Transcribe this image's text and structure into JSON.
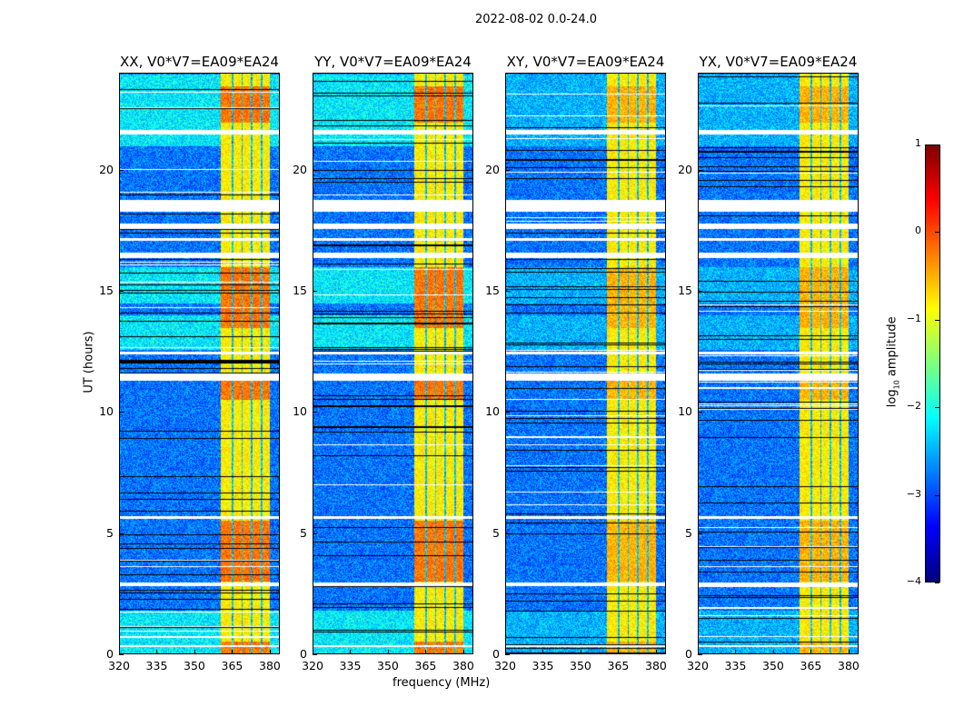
{
  "suptitle": "2022-08-02 0.0-24.0",
  "chart_data": {
    "type": "heatmap",
    "title": "2022-08-02 0.0-24.0",
    "xlabel": "frequency (MHz)",
    "ylabel": "UT (hours)",
    "xlim": [
      320,
      384
    ],
    "ylim": [
      0,
      24
    ],
    "xticks": [
      "320",
      "335",
      "350",
      "365",
      "380"
    ],
    "xtick_values": [
      320,
      335,
      350,
      365,
      380
    ],
    "yticks": [
      "0",
      "5",
      "10",
      "15",
      "20"
    ],
    "ytick_values": [
      0,
      5,
      10,
      15,
      20
    ],
    "panels": [
      {
        "title": "XX, V0*V7=EA09*EA24"
      },
      {
        "title": "YY, V0*V7=EA09*EA24"
      },
      {
        "title": "XY, V0*V7=EA09*EA24"
      },
      {
        "title": "YX, V0*V7=EA09*EA24"
      }
    ],
    "colorbar": {
      "label_main": "log",
      "label_sub": "10",
      "label_rest": " amplitude",
      "range": [
        -4,
        1
      ],
      "ticks": [
        "1",
        "0",
        "−1",
        "−2",
        "−3",
        "−4"
      ],
      "tick_values": [
        1,
        0,
        -1,
        -2,
        -3,
        -4
      ],
      "colormap": "jet"
    },
    "features": {
      "background_log_amplitude": -2.8,
      "rfi_band_MHz": [
        360.5,
        380
      ],
      "rfi_band_log_amplitude": -0.8,
      "rfi_band_gaps_MHz": [
        365,
        369,
        373,
        377
      ],
      "rfi_strong_hours": [
        [
          0,
          0.5
        ],
        [
          3,
          5.5
        ],
        [
          10.5,
          11.5
        ],
        [
          13.5,
          16
        ],
        [
          22,
          23.5
        ]
      ],
      "flagged_hours": [
        [
          0.3,
          0.35
        ],
        [
          2.8,
          2.95
        ],
        [
          5.6,
          5.7
        ],
        [
          11.3,
          11.6
        ],
        [
          12.4,
          12.5
        ],
        [
          16.4,
          16.6
        ],
        [
          17.1,
          17.2
        ],
        [
          17.6,
          17.8
        ],
        [
          18.3,
          18.8
        ],
        [
          21.5,
          21.7
        ]
      ]
    }
  }
}
